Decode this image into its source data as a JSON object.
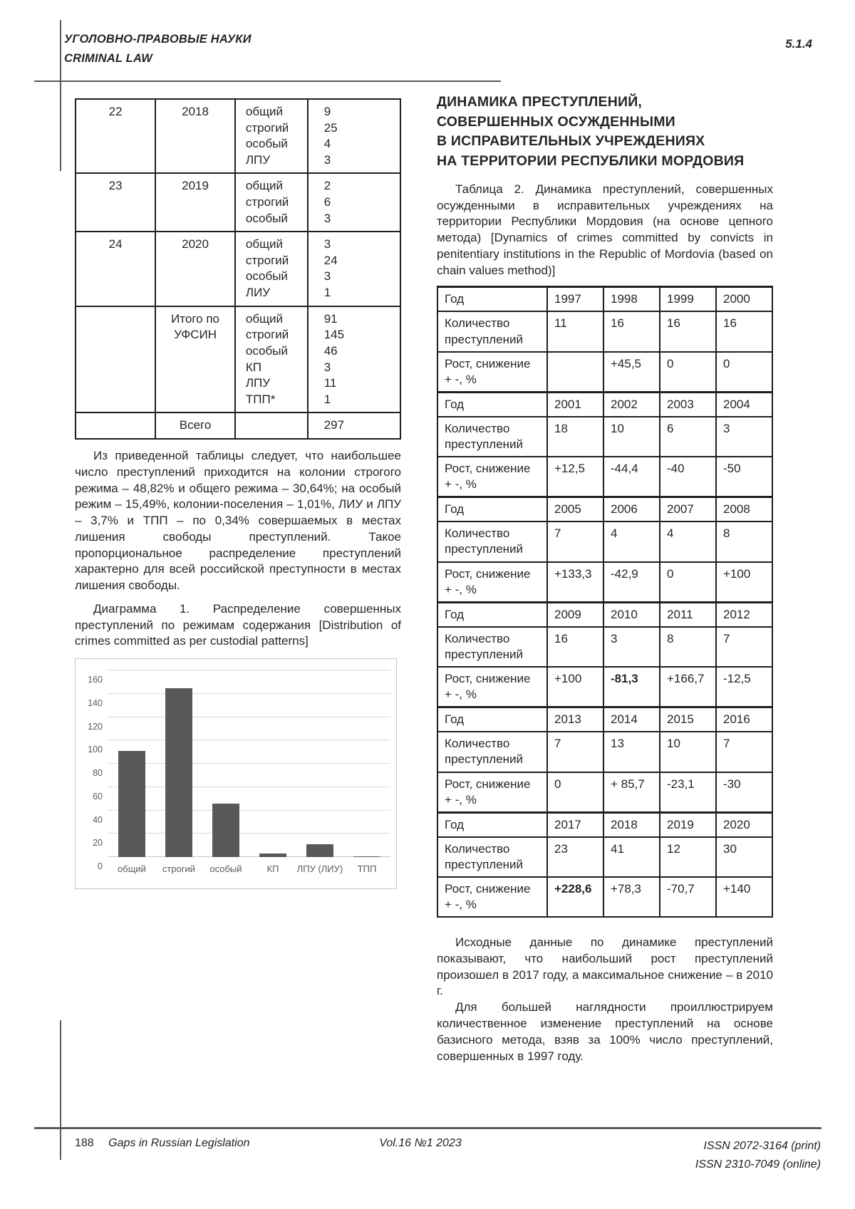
{
  "header": {
    "section_ru": "УГОЛОВНО-ПРАВОВЫЕ НАУКИ",
    "section_en": "CRIMINAL LAW",
    "code": "5.1.4"
  },
  "table1": {
    "rows": [
      {
        "num": "22",
        "year": "2018",
        "regimes": "общий\nстрогий\nособый\nЛПУ",
        "values": "9\n25\n4\n3"
      },
      {
        "num": "23",
        "year": "2019",
        "regimes": "общий\nстрогий\nособый",
        "values": "2\n6\n3"
      },
      {
        "num": "24",
        "year": "2020",
        "regimes": "общий\nстрогий\nособый\nЛИУ",
        "values": "3\n24\n3\n1"
      },
      {
        "num": "",
        "year": "Итого по УФСИН",
        "regimes": "общий\nстрогий\nособый\nКП\nЛПУ\nТПП*",
        "values": "91\n145\n46\n3\n11\n1"
      },
      {
        "num": "",
        "year": "Всего",
        "regimes": "",
        "values": "297"
      }
    ]
  },
  "left_text": {
    "para1": "Из приведенной таблицы следует, что наибольшее число преступлений приходится на колонии строгого режима – 48,82% и общего режима – 30,64%; на особый режим – 15,49%, колонии-поселения – 1,01%, ЛИУ и ЛПУ – 3,7% и ТПП – по 0,34% совершаемых в местах лишения свободы преступлений. Такое пропорциональное распределение преступлений характерно для всей российской преступности в местах лишения свободы.",
    "chart_caption": "Диаграмма 1. Распределение совершенных преступлений по режимам содержания [Distribution of crimes committed as per custodial patterns]"
  },
  "chart_data": {
    "type": "bar",
    "categories": [
      "общий",
      "строгий",
      "особый",
      "КП",
      "ЛПУ (ЛИУ)",
      "ТПП"
    ],
    "values": [
      91,
      145,
      46,
      3,
      11,
      1
    ],
    "title": "",
    "xlabel": "",
    "ylabel": "",
    "ylim": [
      0,
      160
    ],
    "ytick_step": 20,
    "grid": true,
    "legend": false,
    "bar_color": "#595959"
  },
  "right": {
    "title": "ДИНАМИКА ПРЕСТУПЛЕНИЙ,\nСОВЕРШЕННЫХ ОСУЖДЕННЫМИ\nВ ИСПРАВИТЕЛЬНЫХ УЧРЕЖДЕНИЯХ\nНА ТЕРРИТОРИИ РЕСПУБЛИКИ МОРДОВИЯ",
    "table2_caption": "Таблица 2. Динамика преступлений, совершенных осужденными в исправительных учреждениях на территории Республики Мордовия (на основе цепного метода) [Dynamics of crimes committed by convicts in penitentiary institutions in the Republic of Mordovia (based on chain values method)]",
    "table2": {
      "row_labels": {
        "year": "Год",
        "count": "Количество преступлений",
        "growth": "Рост, снижение\n+ -, %"
      },
      "blocks": [
        {
          "years": [
            "1997",
            "1998",
            "1999",
            "2000"
          ],
          "counts": [
            "11",
            "16",
            "16",
            "16"
          ],
          "growth": [
            "",
            "+45,5",
            "0",
            "0"
          ],
          "growth_bold": []
        },
        {
          "years": [
            "2001",
            "2002",
            "2003",
            "2004"
          ],
          "counts": [
            "18",
            "10",
            "6",
            "3"
          ],
          "growth": [
            "+12,5",
            "-44,4",
            "-40",
            "-50"
          ],
          "growth_bold": []
        },
        {
          "years": [
            "2005",
            "2006",
            "2007",
            "2008"
          ],
          "counts": [
            "7",
            "4",
            "4",
            "8"
          ],
          "growth": [
            "+133,3",
            "-42,9",
            "0",
            "+100"
          ],
          "growth_bold": []
        },
        {
          "years": [
            "2009",
            "2010",
            "2011",
            "2012"
          ],
          "counts": [
            "16",
            "3",
            "8",
            "7"
          ],
          "growth": [
            "+100",
            "-81,3",
            "+166,7",
            "-12,5"
          ],
          "growth_bold": [
            1
          ]
        },
        {
          "years": [
            "2013",
            "2014",
            "2015",
            "2016"
          ],
          "counts": [
            "7",
            "13",
            "10",
            "7"
          ],
          "growth": [
            "0",
            "+ 85,7",
            "-23,1",
            "-30"
          ],
          "growth_bold": []
        },
        {
          "years": [
            "2017",
            "2018",
            "2019",
            "2020"
          ],
          "counts": [
            "23",
            "41",
            "12",
            "30"
          ],
          "growth": [
            "+228,6",
            "+78,3",
            "-70,7",
            "+140"
          ],
          "growth_bold": [
            0
          ]
        }
      ]
    },
    "para1": "Исходные данные по динамике преступлений показывают, что наибольший рост преступлений произошел в 2017 году, а максимальное снижение – в 2010 г.",
    "para2": "Для большей наглядности проиллюстрируем количественное изменение преступлений на основе базисного метода, взяв за 100% число преступлений, совершенных в 1997 году."
  },
  "footer": {
    "page": "188",
    "journal": "Gaps in Russian Legislation",
    "volume": "Vol.16 №1 2023",
    "issn_print": "ISSN 2072-3164 (print)",
    "issn_online": "ISSN 2310-7049 (online)"
  }
}
